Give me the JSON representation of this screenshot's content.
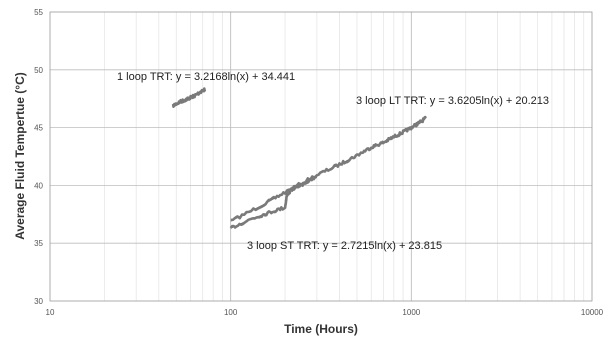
{
  "chart_data": {
    "type": "line",
    "title": "",
    "xlabel": "Time (Hours)",
    "ylabel": "Average Fluid Tempertue (°C)",
    "x_scale": "log",
    "xlim": [
      10,
      10000
    ],
    "ylim": [
      30,
      55
    ],
    "x_ticks": [
      "10",
      "100",
      "1000",
      "10000"
    ],
    "y_ticks": [
      "30",
      "35",
      "40",
      "45",
      "50",
      "55"
    ],
    "grid": true,
    "legend": "none",
    "colors": {
      "data": "#7a7a7a",
      "trend": "#4a4a4a",
      "grid_minor": "#e6e6e6",
      "grid_major": "#bdbdbd",
      "axis": "#9a9a9a"
    },
    "series": [
      {
        "x": [
          48,
          52,
          56,
          60,
          64,
          68,
          72
        ],
        "y": [
          46.9,
          47.2,
          47.4,
          47.6,
          47.8,
          48.1,
          48.3
        ]
      },
      {
        "x": [
          100,
          150,
          200,
          300,
          400,
          500,
          600,
          700,
          800,
          900,
          1000,
          1100,
          1200
        ],
        "y": [
          36.9,
          38.3,
          39.4,
          40.9,
          41.8,
          42.6,
          43.3,
          43.7,
          44.2,
          44.6,
          45.0,
          45.4,
          45.8
        ]
      },
      {
        "x": [
          100,
          130,
          160,
          200,
          205,
          220,
          250,
          300
        ],
        "y": [
          36.3,
          37.1,
          37.6,
          38.1,
          39.2,
          39.7,
          40.1,
          40.7
        ]
      }
    ],
    "annotations": [
      "1 loop TRT: y = 3.2168ln(x) + 34.441",
      "3 loop LT TRT: y = 3.6205ln(x) + 20.213",
      "3 loop ST TRT: y = 2.7215ln(x) + 23.815"
    ]
  }
}
